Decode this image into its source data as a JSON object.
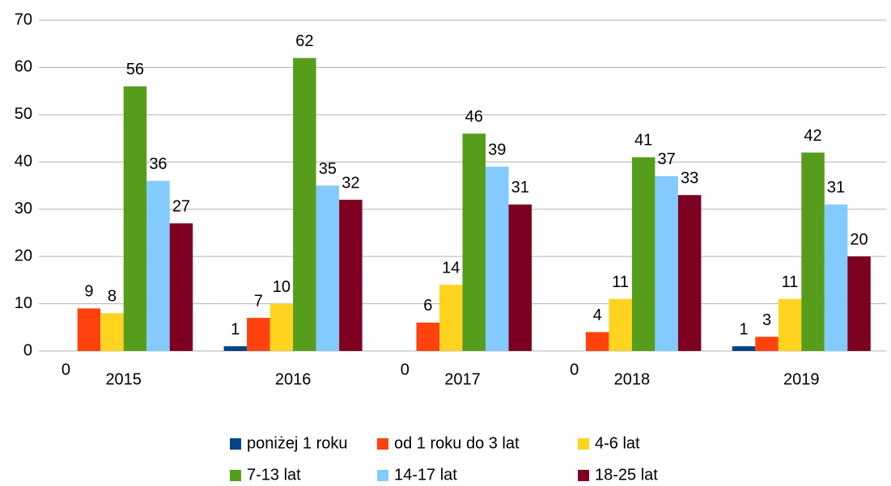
{
  "chart_data": {
    "type": "bar",
    "categories": [
      "2015",
      "2016",
      "2017",
      "2018",
      "2019"
    ],
    "series": [
      {
        "name": "poniżej 1 roku",
        "color": "#004586",
        "values": [
          0,
          1,
          0,
          0,
          1
        ]
      },
      {
        "name": "od 1 roku do 3 lat",
        "color": "#ff420e",
        "values": [
          9,
          7,
          6,
          4,
          3
        ]
      },
      {
        "name": "4-6 lat",
        "color": "#ffd320",
        "values": [
          8,
          10,
          14,
          11,
          11
        ]
      },
      {
        "name": "7-13 lat",
        "color": "#579d1c",
        "values": [
          56,
          62,
          46,
          41,
          42
        ]
      },
      {
        "name": "14-17 lat",
        "color": "#83caff",
        "values": [
          36,
          35,
          39,
          37,
          31
        ]
      },
      {
        "name": "18-25 lat",
        "color": "#7e0021",
        "values": [
          27,
          32,
          31,
          33,
          20
        ]
      }
    ],
    "ylim": [
      0,
      70
    ],
    "yticks": [
      0,
      10,
      20,
      30,
      40,
      50,
      60,
      70
    ],
    "grid": true,
    "legend": "bottom"
  }
}
